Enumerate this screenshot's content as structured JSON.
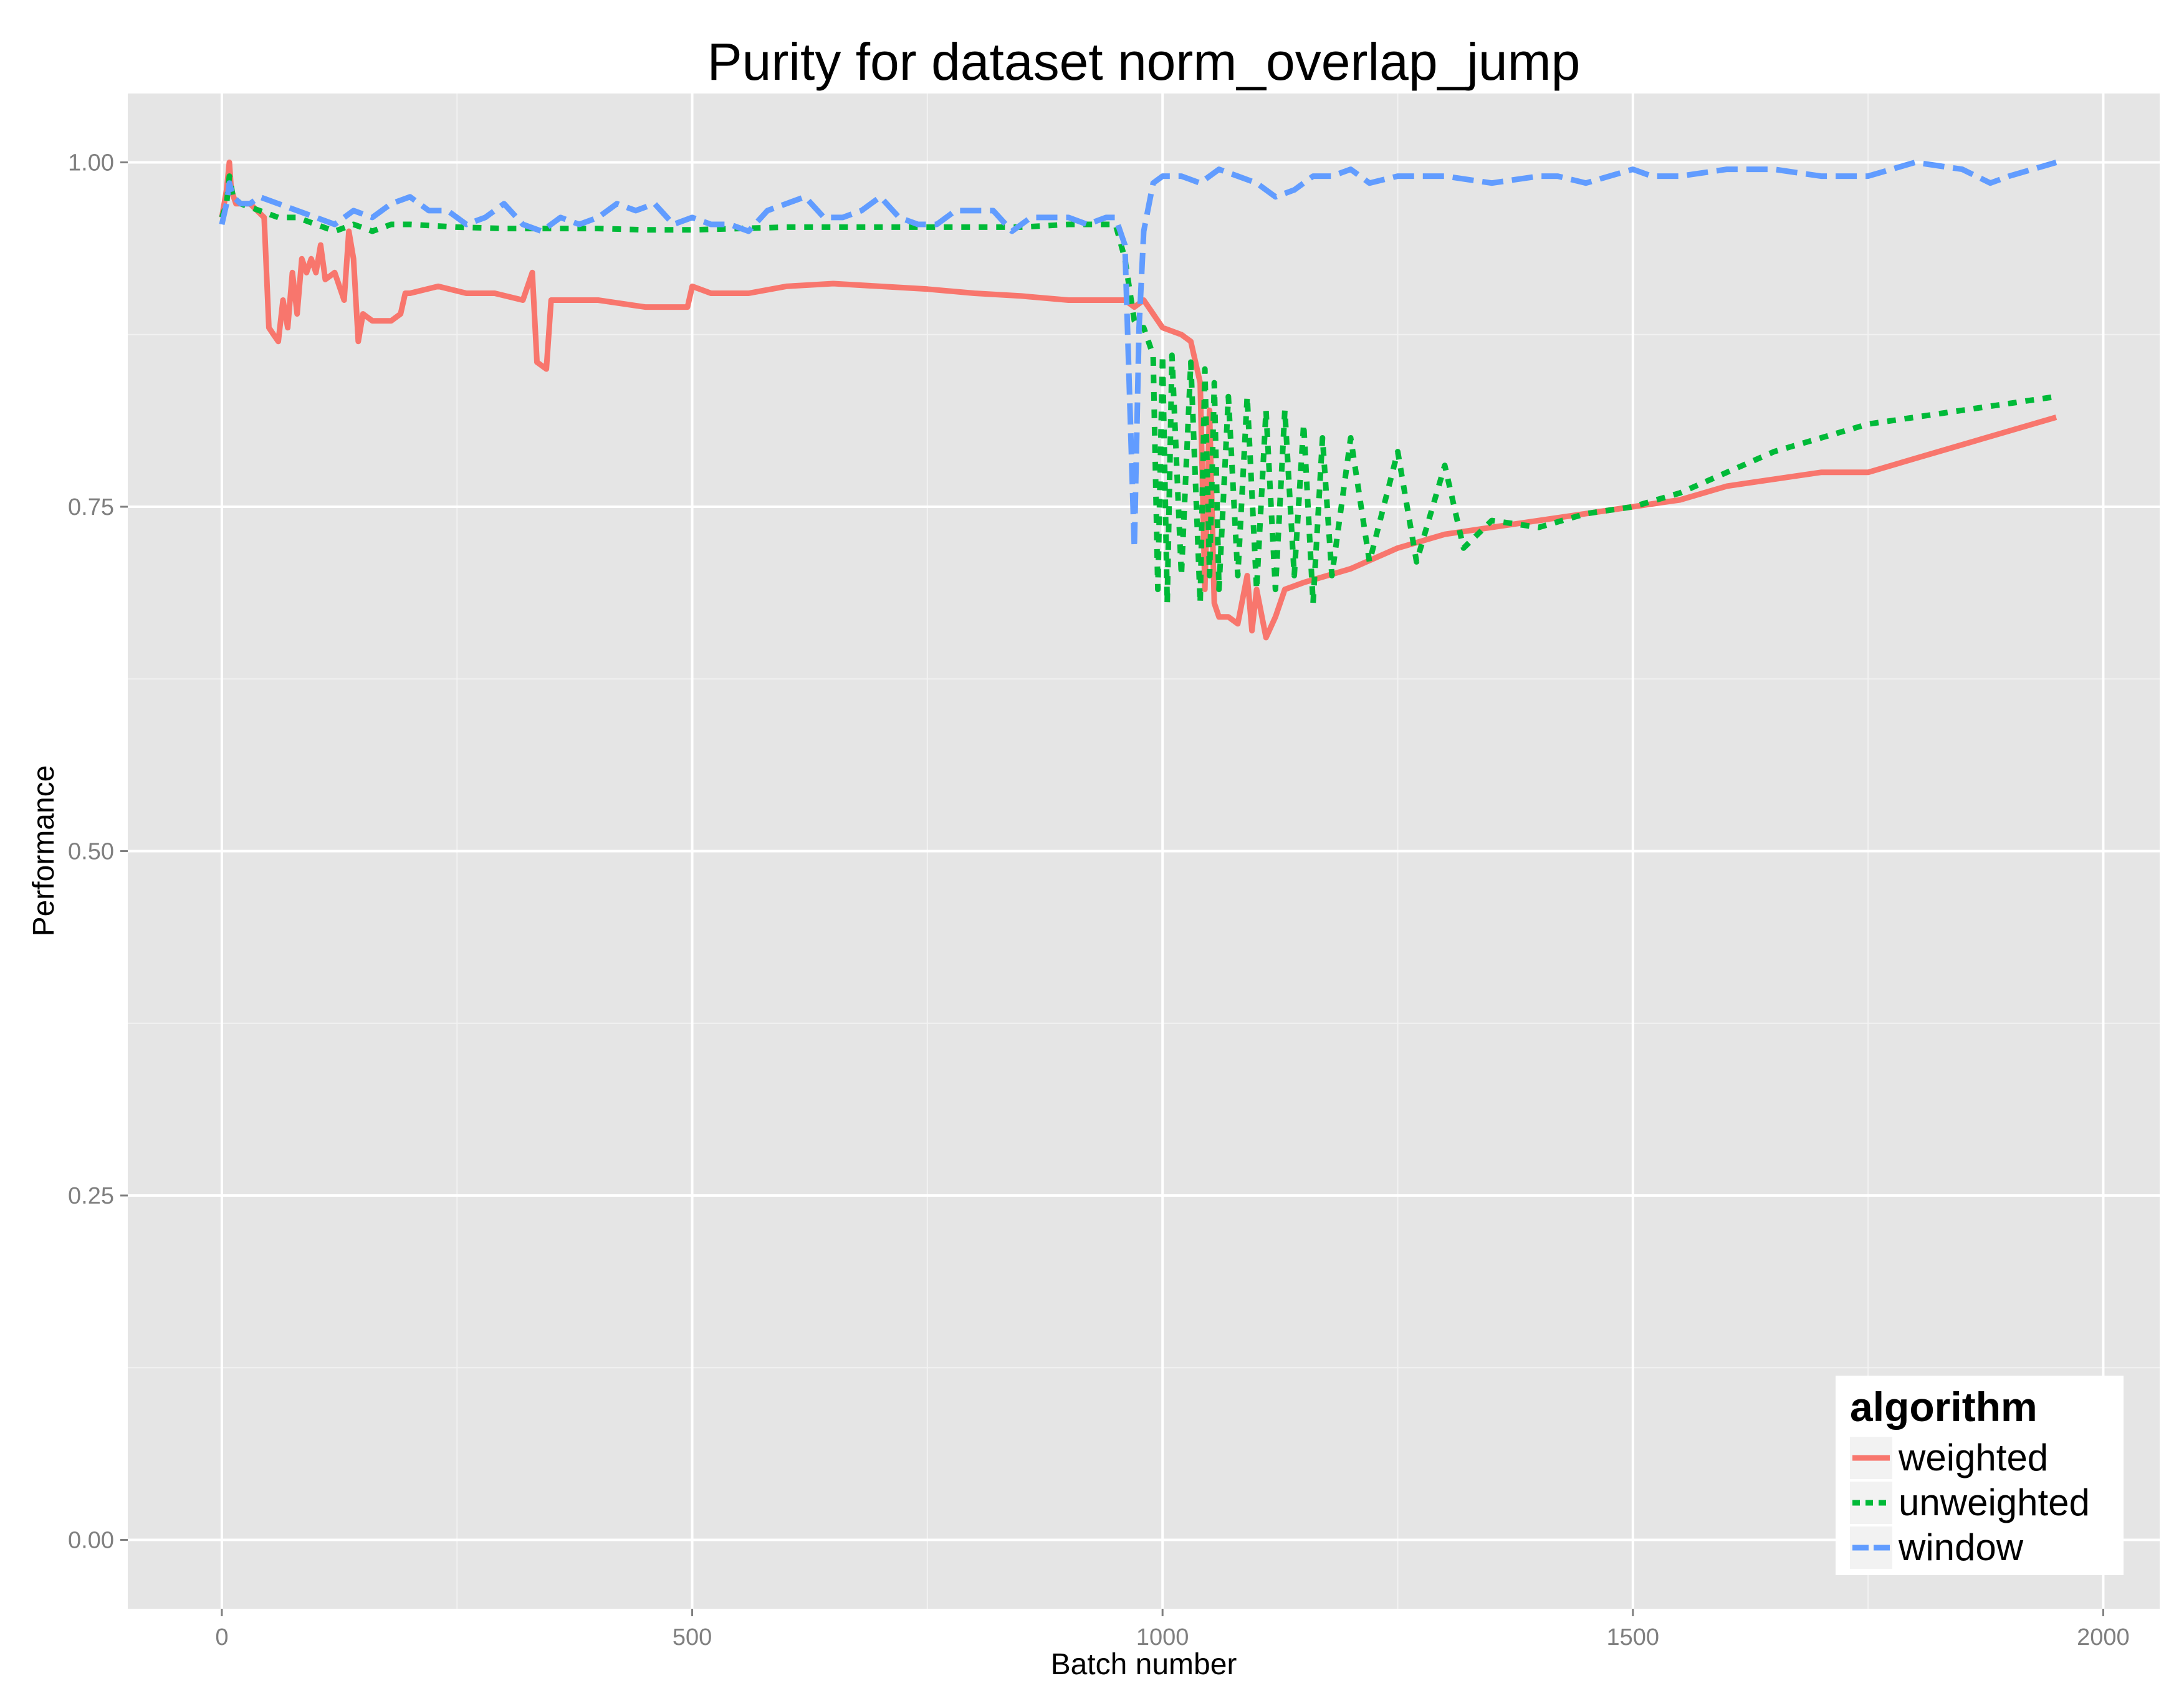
{
  "chart_data": {
    "type": "line",
    "title": "Purity for dataset norm_overlap_jump",
    "xlabel": "Batch number",
    "ylabel": "Performance",
    "xlim": [
      -100,
      2060
    ],
    "ylim": [
      -0.05,
      1.05
    ],
    "x_ticks": [
      0,
      500,
      1000,
      1500,
      2000
    ],
    "x_tick_labels": [
      "0",
      "500",
      "1000",
      "1500",
      "2000"
    ],
    "y_ticks": [
      0,
      0.25,
      0.5,
      0.75,
      1.0
    ],
    "y_tick_labels": [
      "0.00",
      "0.25",
      "0.50",
      "0.75",
      "1.00"
    ],
    "grid": true,
    "legend": {
      "title": "algorithm",
      "position": "bottom-right",
      "entries": [
        "weighted",
        "unweighted",
        "window"
      ]
    },
    "series": [
      {
        "name": "weighted",
        "color": "#F8766D",
        "dash": "solid",
        "x": [
          0,
          5,
          8,
          10,
          15,
          30,
          45,
          50,
          55,
          60,
          65,
          70,
          75,
          80,
          85,
          90,
          95,
          100,
          105,
          110,
          120,
          130,
          135,
          140,
          145,
          150,
          160,
          170,
          180,
          190,
          195,
          200,
          230,
          260,
          290,
          320,
          330,
          335,
          345,
          350,
          360,
          400,
          450,
          495,
          500,
          520,
          560,
          600,
          650,
          700,
          750,
          800,
          850,
          900,
          950,
          960,
          970,
          980,
          990,
          1000,
          1020,
          1030,
          1040,
          1045,
          1050,
          1055,
          1060,
          1070,
          1080,
          1090,
          1095,
          1100,
          1110,
          1120,
          1130,
          1150,
          1200,
          1250,
          1300,
          1350,
          1400,
          1450,
          1500,
          1550,
          1600,
          1650,
          1700,
          1750,
          1800,
          1850,
          1900,
          1950
        ],
        "y": [
          0.96,
          0.98,
          1.0,
          0.98,
          0.97,
          0.97,
          0.96,
          0.88,
          0.875,
          0.87,
          0.9,
          0.88,
          0.92,
          0.89,
          0.93,
          0.92,
          0.93,
          0.92,
          0.94,
          0.915,
          0.92,
          0.9,
          0.95,
          0.93,
          0.87,
          0.89,
          0.885,
          0.885,
          0.885,
          0.89,
          0.905,
          0.905,
          0.91,
          0.905,
          0.905,
          0.9,
          0.92,
          0.855,
          0.85,
          0.9,
          0.9,
          0.9,
          0.895,
          0.895,
          0.91,
          0.905,
          0.905,
          0.91,
          0.912,
          0.91,
          0.908,
          0.905,
          0.903,
          0.9,
          0.9,
          0.9,
          0.895,
          0.9,
          0.89,
          0.88,
          0.875,
          0.87,
          0.84,
          0.69,
          0.82,
          0.68,
          0.67,
          0.67,
          0.665,
          0.7,
          0.66,
          0.69,
          0.655,
          0.67,
          0.69,
          0.695,
          0.705,
          0.72,
          0.73,
          0.735,
          0.74,
          0.745,
          0.75,
          0.755,
          0.765,
          0.77,
          0.775,
          0.775,
          0.785,
          0.795,
          0.805,
          0.815
        ]
      },
      {
        "name": "unweighted",
        "color": "#00BA38",
        "dash": "dashed",
        "x": [
          0,
          5,
          8,
          12,
          20,
          40,
          60,
          80,
          100,
          120,
          140,
          160,
          180,
          200,
          250,
          300,
          350,
          400,
          450,
          500,
          550,
          600,
          650,
          700,
          750,
          800,
          850,
          900,
          950,
          960,
          970,
          975,
          980,
          990,
          995,
          1000,
          1005,
          1010,
          1020,
          1030,
          1040,
          1045,
          1050,
          1055,
          1060,
          1070,
          1080,
          1090,
          1100,
          1110,
          1120,
          1130,
          1140,
          1150,
          1160,
          1170,
          1180,
          1200,
          1220,
          1250,
          1270,
          1300,
          1320,
          1350,
          1400,
          1450,
          1500,
          1550,
          1600,
          1650,
          1700,
          1750,
          1800,
          1850,
          1900,
          1950
        ],
        "y": [
          0.96,
          0.97,
          0.99,
          0.975,
          0.97,
          0.965,
          0.96,
          0.96,
          0.955,
          0.95,
          0.955,
          0.95,
          0.955,
          0.955,
          0.953,
          0.952,
          0.952,
          0.952,
          0.951,
          0.951,
          0.952,
          0.953,
          0.953,
          0.953,
          0.953,
          0.953,
          0.953,
          0.955,
          0.955,
          0.93,
          0.885,
          0.88,
          0.88,
          0.86,
          0.69,
          0.86,
          0.68,
          0.86,
          0.7,
          0.855,
          0.68,
          0.85,
          0.7,
          0.84,
          0.69,
          0.83,
          0.7,
          0.83,
          0.69,
          0.82,
          0.69,
          0.82,
          0.7,
          0.81,
          0.68,
          0.8,
          0.7,
          0.8,
          0.71,
          0.79,
          0.71,
          0.78,
          0.72,
          0.74,
          0.735,
          0.745,
          0.75,
          0.76,
          0.775,
          0.79,
          0.8,
          0.81,
          0.815,
          0.82,
          0.825,
          0.83
        ]
      },
      {
        "name": "window",
        "color": "#619CFF",
        "dash": "longdash",
        "x": [
          0,
          5,
          8,
          12,
          20,
          30,
          40,
          60,
          80,
          100,
          120,
          140,
          160,
          180,
          200,
          220,
          240,
          260,
          280,
          300,
          320,
          340,
          360,
          380,
          400,
          420,
          440,
          460,
          480,
          500,
          520,
          540,
          560,
          580,
          600,
          620,
          640,
          660,
          680,
          700,
          720,
          740,
          760,
          780,
          800,
          820,
          840,
          860,
          880,
          900,
          920,
          940,
          950,
          960,
          970,
          975,
          980,
          990,
          1000,
          1010,
          1020,
          1040,
          1060,
          1080,
          1100,
          1120,
          1140,
          1160,
          1180,
          1200,
          1220,
          1250,
          1280,
          1300,
          1350,
          1400,
          1420,
          1450,
          1500,
          1520,
          1550,
          1600,
          1650,
          1700,
          1750,
          1800,
          1850,
          1880,
          1900,
          1950
        ],
        "y": [
          0.955,
          0.97,
          0.985,
          0.975,
          0.97,
          0.97,
          0.975,
          0.97,
          0.965,
          0.96,
          0.955,
          0.965,
          0.96,
          0.97,
          0.975,
          0.965,
          0.965,
          0.955,
          0.96,
          0.97,
          0.955,
          0.95,
          0.96,
          0.955,
          0.96,
          0.97,
          0.965,
          0.97,
          0.955,
          0.96,
          0.955,
          0.955,
          0.95,
          0.965,
          0.97,
          0.975,
          0.96,
          0.96,
          0.965,
          0.975,
          0.96,
          0.955,
          0.955,
          0.965,
          0.965,
          0.965,
          0.95,
          0.96,
          0.96,
          0.96,
          0.955,
          0.96,
          0.96,
          0.94,
          0.72,
          0.88,
          0.95,
          0.985,
          0.99,
          0.99,
          0.99,
          0.985,
          0.995,
          0.99,
          0.985,
          0.975,
          0.98,
          0.99,
          0.99,
          0.995,
          0.985,
          0.99,
          0.99,
          0.99,
          0.985,
          0.99,
          0.99,
          0.985,
          0.995,
          0.99,
          0.99,
          0.995,
          0.995,
          0.99,
          0.99,
          1.0,
          0.995,
          0.985,
          0.99,
          1.0
        ]
      }
    ]
  }
}
